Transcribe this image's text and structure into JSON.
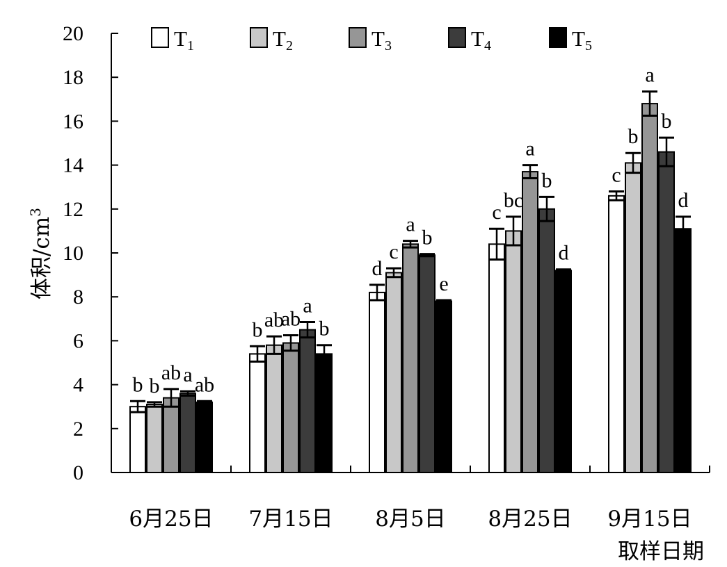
{
  "chart_data": {
    "type": "bar",
    "title": "",
    "xlabel": "取样日期",
    "ylabel": "体积/cm",
    "ylabel_sup": "3",
    "ylim": [
      0,
      20
    ],
    "yticks": [
      0,
      2,
      4,
      6,
      8,
      10,
      12,
      14,
      16,
      18,
      20
    ],
    "categories": [
      "6月25日",
      "7月15日",
      "8月5日",
      "8月25日",
      "9月15日"
    ],
    "legend_position": "top",
    "grid": false,
    "series": [
      {
        "name": "T",
        "sub": "1",
        "fill": "#ffffff",
        "values": [
          3.0,
          5.4,
          8.2,
          10.4,
          12.6
        ],
        "errors": [
          0.25,
          0.35,
          0.35,
          0.7,
          0.2
        ],
        "letters": [
          "b",
          "b",
          "d",
          "c",
          "c"
        ]
      },
      {
        "name": "T",
        "sub": "2",
        "fill": "#c8c8c8",
        "values": [
          3.1,
          5.8,
          9.1,
          11.0,
          14.1
        ],
        "errors": [
          0.1,
          0.4,
          0.2,
          0.65,
          0.45
        ],
        "letters": [
          "b",
          "ab",
          "c",
          "bc",
          "b"
        ]
      },
      {
        "name": "T",
        "sub": "3",
        "fill": "#969696",
        "values": [
          3.4,
          5.9,
          10.4,
          13.7,
          16.8
        ],
        "errors": [
          0.4,
          0.35,
          0.15,
          0.3,
          0.55
        ],
        "letters": [
          "ab",
          "ab",
          "a",
          "a",
          "a"
        ]
      },
      {
        "name": "T",
        "sub": "4",
        "fill": "#3c3c3c",
        "values": [
          3.6,
          6.5,
          9.9,
          12.0,
          14.6
        ],
        "errors": [
          0.1,
          0.35,
          0.05,
          0.55,
          0.65
        ],
        "letters": [
          "a",
          "a",
          "b",
          "b",
          "b"
        ]
      },
      {
        "name": "T",
        "sub": "5",
        "fill": "#000000",
        "values": [
          3.2,
          5.4,
          7.8,
          9.2,
          11.1
        ],
        "errors": [
          0.05,
          0.4,
          0.05,
          0.05,
          0.55
        ],
        "letters": [
          "ab",
          "b",
          "e",
          "d",
          "d"
        ]
      }
    ]
  }
}
